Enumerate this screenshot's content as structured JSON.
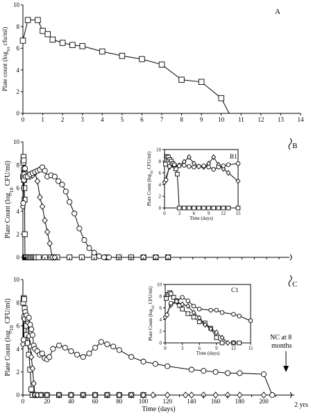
{
  "chart_data": [
    {
      "panel": "A",
      "type": "line",
      "ylabel": "Plate count (log10 cfu/ml)",
      "xlabel": "",
      "xlim": [
        0,
        14
      ],
      "ylim": [
        0,
        10
      ],
      "xticks": [
        "0",
        "1",
        "2",
        "3",
        "4",
        "5",
        "6",
        "7",
        "8",
        "9",
        "10",
        "11",
        "12",
        "13",
        "14"
      ],
      "yticks": [
        "0",
        "2",
        "4",
        "6",
        "8",
        "10"
      ],
      "series": [
        {
          "marker": "square",
          "x": [
            0,
            0.25,
            0.75,
            1,
            1.25,
            1.5,
            2,
            2.5,
            3,
            4,
            5,
            6,
            7,
            8,
            9,
            10,
            10.4
          ],
          "y": [
            6.7,
            8.6,
            8.6,
            7.6,
            7.3,
            6.8,
            6.5,
            6.3,
            6.2,
            5.7,
            5.3,
            5.0,
            4.5,
            3.1,
            2.9,
            1.4,
            0
          ],
          "markers": [
            true,
            true,
            true,
            true,
            true,
            true,
            true,
            true,
            true,
            true,
            true,
            true,
            true,
            true,
            true,
            true,
            false
          ]
        }
      ]
    },
    {
      "panel": "B",
      "type": "line",
      "ylabel": "Plate Count (log10 CFU/ml)",
      "xlabel": "",
      "ylim": [
        0,
        10
      ],
      "yticks": [
        "0",
        "2",
        "4",
        "6",
        "8",
        "10"
      ],
      "series": [
        {
          "marker": "square",
          "x": [
            0.3,
            0.6,
            0.9,
            1.2,
            1.5,
            1.8,
            2.1,
            2.4,
            2.7,
            3.0,
            3.5,
            4,
            5,
            6,
            7,
            8,
            9,
            10,
            11,
            12,
            13,
            15,
            20,
            25,
            30,
            40,
            50,
            60,
            70,
            80,
            90,
            100,
            110,
            120
          ],
          "y": [
            7.0,
            8.2,
            8.7,
            8.4,
            7.6,
            6.7,
            6.0,
            5.0,
            2.0,
            0,
            0,
            0,
            0,
            0,
            0,
            0,
            0,
            0,
            0,
            0,
            0,
            0,
            0,
            0,
            0,
            0,
            0,
            0,
            0,
            0,
            0,
            0,
            0,
            0
          ]
        },
        {
          "marker": "diamond",
          "x": [
            0,
            1,
            2,
            3,
            4,
            6,
            8,
            10,
            12,
            14,
            16,
            18,
            20,
            22,
            24,
            26,
            28
          ],
          "y": [
            4.4,
            7.0,
            7.5,
            7.4,
            7.3,
            7.0,
            7.0,
            7.1,
            7.3,
            6.6,
            5.2,
            4.4,
            3.2,
            2.2,
            1.2,
            0,
            0
          ]
        },
        {
          "marker": "circle",
          "x": [
            0.5,
            1,
            1.5,
            2,
            3,
            4,
            6,
            8,
            10,
            12,
            14,
            16,
            18,
            20,
            22,
            25,
            28,
            31,
            34,
            37,
            40,
            44,
            48,
            52,
            56,
            60,
            64,
            68,
            72,
            100,
            110,
            120
          ],
          "y": [
            4.7,
            6.9,
            6.7,
            7.2,
            7.7,
            7.0,
            7.0,
            7.2,
            7.3,
            7.4,
            7.5,
            7.6,
            7.8,
            7.5,
            7.0,
            7.1,
            7.0,
            6.6,
            6.3,
            5.7,
            4.8,
            3.8,
            2.5,
            1.5,
            0.8,
            0.4,
            0.1,
            0,
            0,
            0,
            0,
            0
          ]
        }
      ],
      "inset": {
        "label": "B1",
        "xlabel": "Time (days)",
        "ylabel": "Plate Count (log10 CFU/ml)",
        "xlim": [
          0,
          15
        ],
        "ylim": [
          0,
          10
        ],
        "xticks": [
          "0",
          "3",
          "6",
          "9",
          "12",
          "15"
        ],
        "yticks": [
          "0",
          "2",
          "4",
          "6",
          "8",
          "10"
        ],
        "series": [
          {
            "marker": "square",
            "x": [
              0.2,
              0.5,
              0.8,
              1.1,
              1.4,
              1.7,
              2,
              2.3,
              2.6,
              3.0,
              4,
              5,
              6,
              7,
              8,
              9,
              10,
              11,
              12,
              13,
              15
            ],
            "y": [
              7.5,
              8.8,
              8.7,
              8.3,
              8.0,
              7.6,
              7.3,
              6.7,
              5.8,
              0,
              0,
              0,
              0,
              0,
              0,
              0,
              0,
              0,
              0,
              0,
              0
            ]
          },
          {
            "marker": "diamond",
            "x": [
              0,
              1,
              2,
              3,
              4,
              5,
              6,
              7,
              8,
              9,
              10,
              11,
              12,
              13,
              15
            ],
            "y": [
              4.4,
              7.0,
              7.2,
              7.3,
              7.9,
              8.7,
              7.6,
              7.1,
              7.0,
              7.6,
              8.7,
              7.4,
              6.7,
              6.0,
              4.6
            ]
          },
          {
            "marker": "circle",
            "x": [
              0.3,
              1,
              2,
              3,
              4,
              5,
              6,
              7,
              8,
              9,
              10,
              11,
              12,
              13,
              15
            ],
            "y": [
              4.8,
              7.1,
              7.4,
              7.2,
              7.3,
              7.1,
              7.0,
              7.1,
              7.2,
              7.0,
              6.6,
              7.0,
              7.2,
              7.4,
              7.6
            ]
          }
        ]
      }
    },
    {
      "panel": "C",
      "type": "line",
      "ylabel": "Plate Count (log10 CFU/ml)",
      "xlabel": "Time (days)",
      "xlim": [
        0,
        210
      ],
      "ylim": [
        0,
        10
      ],
      "xticks": [
        "0",
        "20",
        "40",
        "60",
        "80",
        "100",
        "120",
        "140",
        "160",
        "180",
        "200"
      ],
      "yticks": [
        "0",
        "2",
        "4",
        "6",
        "8",
        "10"
      ],
      "break_label": "2 yrs",
      "annotation": "NC at 8 months",
      "series": [
        {
          "marker": "square",
          "x": [
            0.3,
            0.6,
            1,
            1.5,
            2,
            2.5,
            3,
            4,
            5,
            6,
            7,
            8,
            10,
            15,
            20,
            30,
            40,
            50,
            60,
            70,
            80,
            90,
            100
          ],
          "y": [
            8.0,
            8.4,
            8.3,
            7.5,
            6.7,
            6.0,
            5.2,
            4.5,
            3.5,
            2.2,
            0.5,
            0,
            0,
            0,
            0,
            0,
            0,
            0,
            0,
            0,
            0,
            0,
            0
          ]
        },
        {
          "marker": "diamond",
          "x": [
            0,
            1,
            2,
            3,
            4,
            5,
            6,
            7,
            8,
            9,
            10,
            12,
            15,
            20,
            30,
            40,
            50,
            60,
            70,
            80,
            90,
            100,
            108,
            120,
            135,
            140,
            150,
            160,
            170,
            180,
            200
          ],
          "y": [
            4.4,
            6.6,
            7.0,
            6.5,
            6.3,
            5.1,
            4.2,
            3.3,
            2.3,
            1.0,
            0,
            0,
            0,
            0,
            0,
            0,
            0,
            0,
            0,
            0,
            0,
            0,
            0,
            0,
            0,
            0,
            0,
            0,
            0,
            0,
            0
          ]
        },
        {
          "marker": "circle",
          "x": [
            0.5,
            1,
            1.5,
            2,
            3,
            4,
            5,
            6,
            7,
            8,
            9,
            10,
            12,
            14,
            16,
            18,
            20,
            22,
            25,
            30,
            35,
            40,
            45,
            50,
            55,
            60,
            65,
            70,
            75,
            80,
            90,
            100,
            110,
            120,
            140,
            150,
            160,
            170,
            180,
            200,
            207
          ],
          "y": [
            4.8,
            6.8,
            6.6,
            7.2,
            6.9,
            6.6,
            6.7,
            6.1,
            5.7,
            5.2,
            4.3,
            4.0,
            3.8,
            3.5,
            3.6,
            3.2,
            3.1,
            3.3,
            4.0,
            4.3,
            4.1,
            3.8,
            3.5,
            3.3,
            3.6,
            4.1,
            4.6,
            4.4,
            4.2,
            3.9,
            3.3,
            2.9,
            2.7,
            2.5,
            2.2,
            2.1,
            2.0,
            1.9,
            1.9,
            1.8,
            0
          ]
        }
      ],
      "inset": {
        "label": "C1",
        "xlabel": "Time (days)",
        "ylabel": "Plate Count (log10 CFU/ml)",
        "xlim": [
          0,
          15
        ],
        "ylim": [
          0,
          10
        ],
        "xticks": [
          "0",
          "3",
          "6",
          "9",
          "12",
          "15"
        ],
        "yticks": [
          "0",
          "2",
          "4",
          "6",
          "8",
          "10"
        ],
        "series": [
          {
            "marker": "square",
            "x": [
              0.2,
              0.5,
              0.8,
              1,
              1.5,
              2,
              2.5,
              3,
              4,
              5,
              6,
              7,
              8,
              9,
              10,
              12,
              13
            ],
            "y": [
              7.6,
              8.3,
              8.6,
              8.4,
              7.8,
              7.2,
              6.4,
              5.8,
              5.0,
              4.4,
              3.6,
              3.4,
              2.5,
              0.9,
              0,
              0,
              0
            ]
          },
          {
            "marker": "diamond",
            "x": [
              0,
              1,
              2,
              3,
              4,
              5,
              6,
              7,
              8,
              9,
              10,
              11,
              12
            ],
            "y": [
              4.4,
              6.5,
              7.0,
              6.6,
              6.3,
              5.2,
              4.3,
              3.1,
              2.4,
              1.8,
              0.9,
              0,
              0
            ]
          },
          {
            "marker": "circle",
            "x": [
              0.3,
              1,
              2,
              3,
              4,
              5,
              6,
              8,
              9,
              10,
              12,
              13,
              15
            ],
            "y": [
              4.8,
              6.8,
              7.1,
              7.8,
              7.2,
              6.3,
              5.8,
              5.6,
              5.6,
              5.2,
              4.9,
              4.6,
              3.8
            ]
          }
        ]
      }
    }
  ],
  "labels": {
    "a_tag": "A",
    "b_tag": "B",
    "c_tag": "C",
    "b1_tag": "B1",
    "c1_tag": "C1",
    "two_yrs": "2 yrs",
    "nc_line1": "NC at 8",
    "nc_line2": "months"
  }
}
